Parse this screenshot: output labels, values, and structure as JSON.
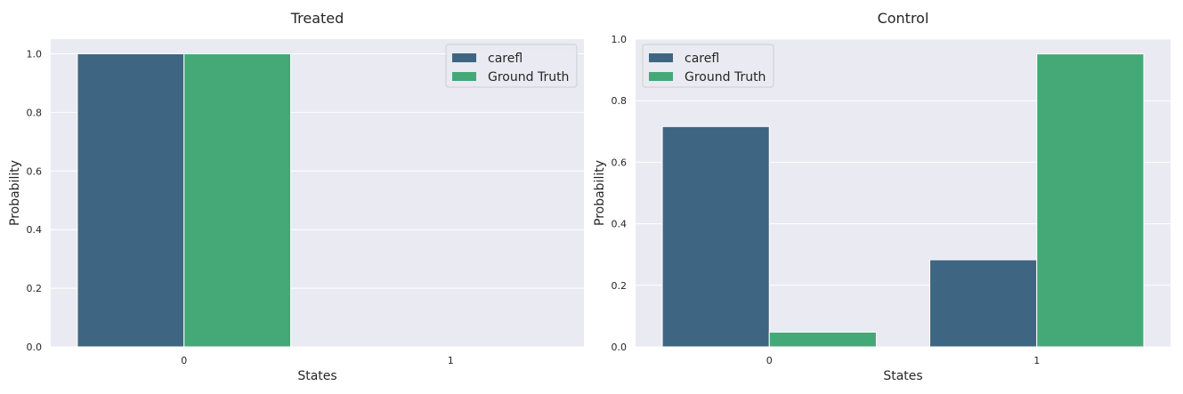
{
  "colors": {
    "background": "#eaeaf2",
    "grid": "#ffffff",
    "carefl": "#3e6682",
    "ground_truth": "#45a877"
  },
  "chart_data": [
    {
      "type": "bar",
      "title": "Treated",
      "xlabel": "States",
      "ylabel": "Probability",
      "categories": [
        "0",
        "1"
      ],
      "series": [
        {
          "name": "carefl",
          "values": [
            1.0,
            0.0
          ]
        },
        {
          "name": "Ground Truth",
          "values": [
            1.0,
            0.0
          ]
        }
      ],
      "ylim": [
        0,
        1.05
      ],
      "yticks": [
        "0.0",
        "0.2",
        "0.4",
        "0.6",
        "0.8",
        "1.0"
      ],
      "grid": true,
      "legend": "top-right"
    },
    {
      "type": "bar",
      "title": "Control",
      "xlabel": "States",
      "ylabel": "Probability",
      "categories": [
        "0",
        "1"
      ],
      "series": [
        {
          "name": "carefl",
          "values": [
            0.716,
            0.283
          ]
        },
        {
          "name": "Ground Truth",
          "values": [
            0.048,
            0.952
          ]
        }
      ],
      "ylim": [
        0,
        1.0
      ],
      "yticks": [
        "0.0",
        "0.2",
        "0.4",
        "0.6",
        "0.8",
        "1.0"
      ],
      "grid": true,
      "legend": "top-left"
    }
  ]
}
